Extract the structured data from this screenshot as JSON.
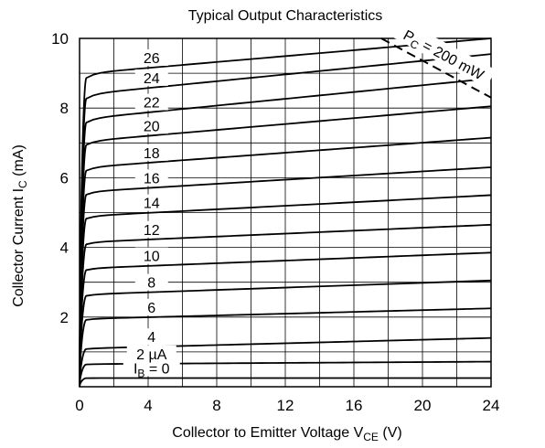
{
  "chart_data": {
    "type": "line",
    "title": "Typical Output Characteristics",
    "xlabel": {
      "main": "Collector to Emitter Voltage  V",
      "sub": "CE",
      "unit": "  (V)"
    },
    "ylabel": {
      "main": "Collector Current  I",
      "sub": "C",
      "unit": "  (mA)"
    },
    "xlim": [
      0,
      24
    ],
    "ylim": [
      0,
      10
    ],
    "xticks": [
      "0",
      "4",
      "8",
      "12",
      "16",
      "20",
      "24"
    ],
    "yticks": [
      "2",
      "4",
      "6",
      "8",
      "10"
    ],
    "grid": true,
    "knee_v": 0.4,
    "series": [
      {
        "label": "",
        "label_main": "I",
        "label_sub": "B",
        "label_rest": " = 0",
        "ib": 0,
        "i0": 0.25,
        "i24": 0.25
      },
      {
        "label": "2 µA",
        "ib": 2,
        "i0": 0.65,
        "i24": 0.72
      },
      {
        "label": "4",
        "ib": 4,
        "i0": 1.1,
        "i24": 1.4
      },
      {
        "label": "6",
        "ib": 6,
        "i0": 1.95,
        "i24": 2.25
      },
      {
        "label": "8",
        "ib": 8,
        "i0": 2.65,
        "i24": 3.05
      },
      {
        "label": "10",
        "ib": 10,
        "i0": 3.4,
        "i24": 3.85
      },
      {
        "label": "12",
        "ib": 12,
        "i0": 4.15,
        "i24": 4.65
      },
      {
        "label": "14",
        "ib": 14,
        "i0": 4.9,
        "i24": 5.5
      },
      {
        "label": "16",
        "ib": 16,
        "i0": 5.6,
        "i24": 6.3
      },
      {
        "label": "18",
        "ib": 18,
        "i0": 6.3,
        "i24": 7.15
      },
      {
        "label": "20",
        "ib": 20,
        "i0": 7.05,
        "i24": 8.05
      },
      {
        "label": "22",
        "ib": 22,
        "i0": 7.7,
        "i24": 8.85
      },
      {
        "label": "24",
        "ib": 24,
        "i0": 8.4,
        "i24": 9.55
      },
      {
        "label": "26",
        "ib": 26,
        "i0": 9.0,
        "i24": 10.0
      }
    ],
    "pc_line": {
      "label_main": "P",
      "label_sub": "C",
      "label_rest": " = 200 mW",
      "power_mw": 200
    }
  }
}
